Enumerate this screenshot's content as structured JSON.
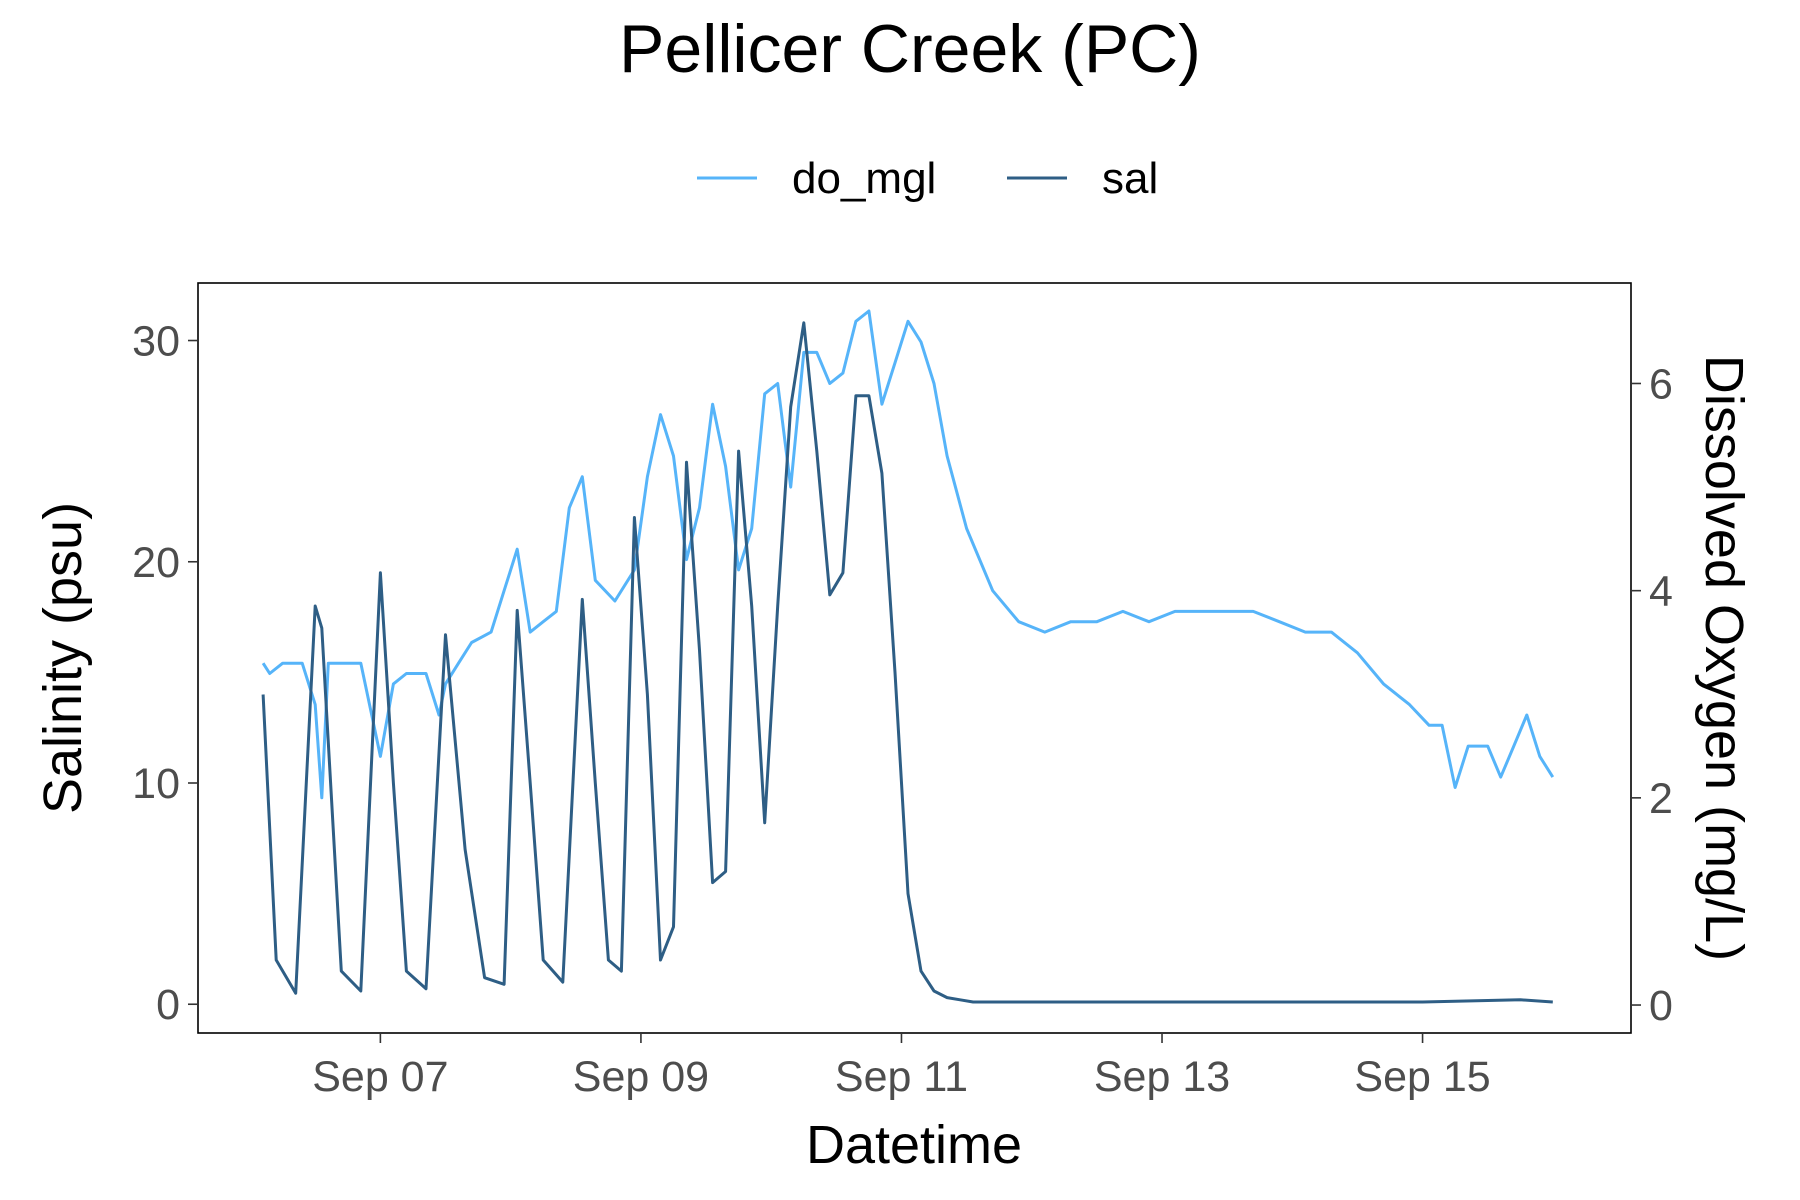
{
  "chart_data": {
    "type": "line",
    "title": "Pellicer Creek (PC)",
    "xlabel": "Datetime",
    "ylabel": "Salinity (psu)",
    "y2label": "Dissolved Oxygen (mg/L)",
    "legend_position": "top",
    "grid": false,
    "x_tick_labels": [
      "Sep 07",
      "Sep 09",
      "Sep 11",
      "Sep 13",
      "Sep 15"
    ],
    "x_tick_days": [
      7,
      9,
      11,
      13,
      15
    ],
    "xlim_days": [
      5.6,
      16.6
    ],
    "ylim": [
      -1.3,
      32.6
    ],
    "y_ticks": [
      0,
      10,
      20,
      30
    ],
    "y2lim": [
      -0.27,
      6.97
    ],
    "y2_ticks": [
      0,
      2,
      4,
      6
    ],
    "series": [
      {
        "name": "do_mgl",
        "axis": "right",
        "color": "#56B4F9",
        "x_days": [
          6.1,
          6.15,
          6.25,
          6.4,
          6.5,
          6.55,
          6.6,
          6.7,
          6.85,
          6.95,
          7.0,
          7.1,
          7.2,
          7.35,
          7.45,
          7.5,
          7.6,
          7.7,
          7.85,
          7.95,
          8.05,
          8.15,
          8.25,
          8.35,
          8.45,
          8.55,
          8.65,
          8.8,
          8.95,
          9.05,
          9.15,
          9.25,
          9.35,
          9.45,
          9.55,
          9.65,
          9.75,
          9.85,
          9.95,
          10.05,
          10.15,
          10.25,
          10.35,
          10.45,
          10.55,
          10.65,
          10.75,
          10.85,
          10.95,
          11.05,
          11.15,
          11.25,
          11.35,
          11.5,
          11.7,
          11.9,
          12.1,
          12.3,
          12.5,
          12.7,
          12.9,
          13.1,
          13.3,
          13.5,
          13.7,
          13.9,
          14.1,
          14.3,
          14.5,
          14.7,
          14.9,
          15.05,
          15.15,
          15.25,
          15.35,
          15.5,
          15.6,
          15.7,
          15.8,
          15.9,
          16.0
        ],
        "values": [
          3.3,
          3.2,
          3.3,
          3.3,
          2.9,
          2.0,
          3.3,
          3.3,
          3.3,
          2.7,
          2.4,
          3.1,
          3.2,
          3.2,
          2.8,
          3.1,
          3.3,
          3.5,
          3.6,
          4.0,
          4.4,
          3.6,
          3.7,
          3.8,
          4.8,
          5.1,
          4.1,
          3.9,
          4.2,
          5.1,
          5.7,
          5.3,
          4.3,
          4.8,
          5.8,
          5.2,
          4.2,
          4.6,
          5.9,
          6.0,
          5.0,
          6.3,
          6.3,
          6.0,
          6.1,
          6.6,
          6.7,
          5.8,
          6.2,
          6.6,
          6.4,
          6.0,
          5.3,
          4.6,
          4.0,
          3.7,
          3.6,
          3.7,
          3.7,
          3.8,
          3.7,
          3.8,
          3.8,
          3.8,
          3.8,
          3.7,
          3.6,
          3.6,
          3.4,
          3.1,
          2.9,
          2.7,
          2.7,
          2.1,
          2.5,
          2.5,
          2.2,
          2.5,
          2.8,
          2.4,
          2.2
        ]
      },
      {
        "name": "sal",
        "axis": "left",
        "color": "#2E5E85",
        "x_days": [
          6.1,
          6.2,
          6.35,
          6.5,
          6.55,
          6.7,
          6.85,
          7.0,
          7.1,
          7.2,
          7.35,
          7.5,
          7.65,
          7.8,
          7.95,
          8.05,
          8.15,
          8.25,
          8.4,
          8.55,
          8.65,
          8.75,
          8.85,
          8.95,
          9.05,
          9.15,
          9.25,
          9.35,
          9.45,
          9.55,
          9.65,
          9.75,
          9.85,
          9.95,
          10.05,
          10.15,
          10.25,
          10.35,
          10.45,
          10.55,
          10.65,
          10.75,
          10.85,
          10.95,
          11.05,
          11.15,
          11.25,
          11.35,
          11.45,
          11.55,
          11.65,
          11.8,
          12.0,
          12.5,
          13.0,
          14.0,
          15.0,
          15.75,
          16.0
        ],
        "values": [
          14.0,
          2.0,
          0.5,
          18.0,
          17.0,
          1.5,
          0.6,
          19.5,
          10.0,
          1.5,
          0.7,
          16.7,
          7.0,
          1.2,
          0.9,
          17.8,
          10.0,
          2.0,
          1.0,
          18.3,
          10.0,
          2.0,
          1.5,
          22.0,
          14.0,
          2.0,
          3.5,
          24.5,
          16.0,
          5.5,
          6.0,
          25.0,
          18.0,
          8.2,
          18.0,
          27.0,
          30.8,
          25.0,
          18.5,
          19.5,
          27.5,
          27.5,
          24.0,
          15.0,
          5.0,
          1.5,
          0.6,
          0.3,
          0.2,
          0.1,
          0.1,
          0.1,
          0.1,
          0.1,
          0.1,
          0.1,
          0.1,
          0.2,
          0.1
        ]
      }
    ]
  }
}
